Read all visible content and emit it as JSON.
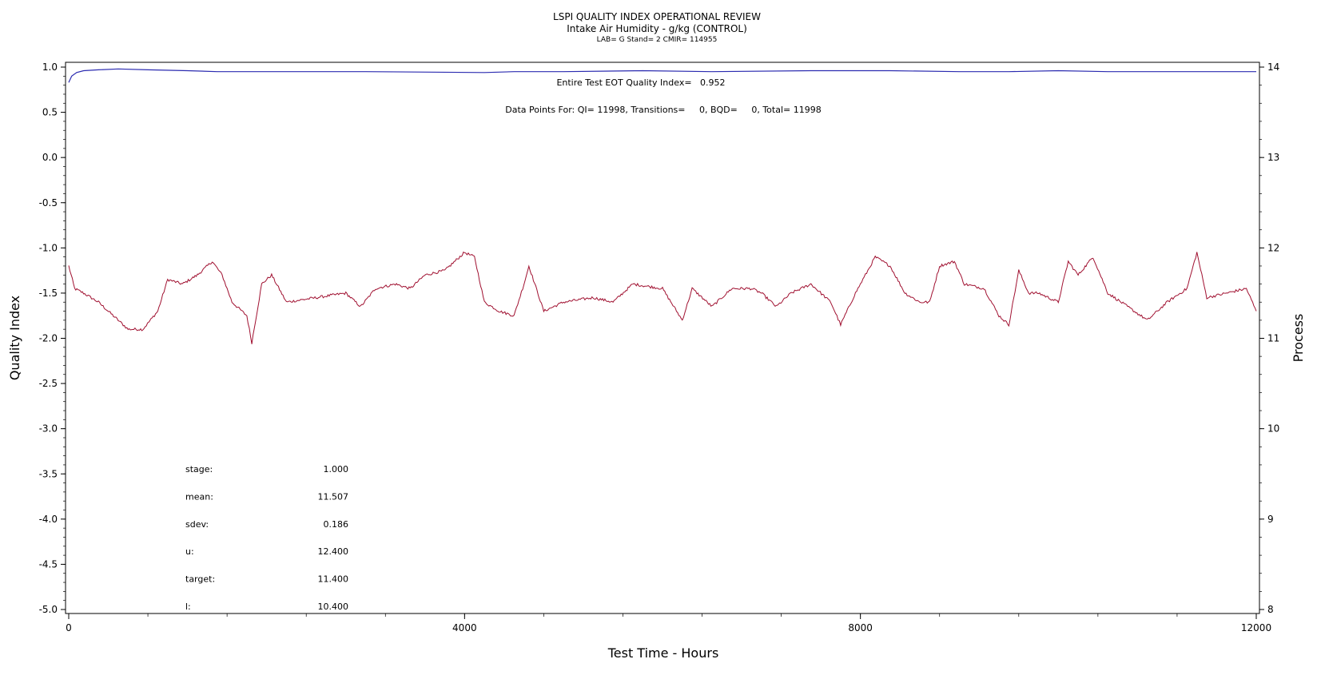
{
  "chart_data": {
    "type": "line",
    "title": "LSPI QUALITY INDEX OPERATIONAL REVIEW",
    "subtitle": "Intake Air Humidity - g/kg (CONTROL)",
    "subtitle2": "LAB= G Stand= 2 CMIR= 114955",
    "xlabel": "Test Time - Hours",
    "ylabel_left": "Quality Index",
    "ylabel_right": "Process",
    "xlim": [
      0,
      12000
    ],
    "ylim_left": [
      -5.0,
      1.0
    ],
    "ylim_right": [
      8,
      14
    ],
    "x_ticks": [
      "0",
      "4000",
      "8000",
      "12000"
    ],
    "y_left_ticks": [
      "1.0",
      "0.5",
      "0.0",
      "-0.5",
      "-1.0",
      "-1.5",
      "-2.0",
      "-2.5",
      "-3.0",
      "-3.5",
      "-4.0",
      "-4.5",
      "-5.0"
    ],
    "y_right_ticks": [
      "14",
      "13",
      "12",
      "11",
      "10",
      "9",
      "8"
    ],
    "grid": false,
    "header_annotation": "Entire Test EOT Quality Index=   0.952",
    "points_annotation": "Data Points For: QI= 11998, Transitions=     0, BQD=     0, Total= 11998",
    "stats": [
      {
        "label": "stage:",
        "value": "1.000"
      },
      {
        "label": "mean:",
        "value": "11.507"
      },
      {
        "label": "sdev:",
        "value": "0.186"
      },
      {
        "label": "u:",
        "value": "12.400"
      },
      {
        "label": "target:",
        "value": "11.400"
      },
      {
        "label": "l:",
        "value": "10.400"
      }
    ],
    "series": [
      {
        "axis": "left",
        "color": "#2b2bb0",
        "x": [
          0,
          30,
          80,
          150,
          300,
          500,
          800,
          1200,
          1500,
          2000,
          3000,
          4200,
          4500,
          5000,
          5800,
          6500,
          7500,
          8300,
          9000,
          9500,
          10000,
          10500,
          11000,
          12000
        ],
        "values": [
          0.83,
          0.9,
          0.94,
          0.96,
          0.97,
          0.98,
          0.97,
          0.96,
          0.95,
          0.95,
          0.95,
          0.94,
          0.95,
          0.95,
          0.96,
          0.95,
          0.96,
          0.96,
          0.95,
          0.95,
          0.96,
          0.95,
          0.95,
          0.95
        ]
      },
      {
        "axis": "right",
        "color": "#a01030",
        "x": [
          0,
          60,
          150,
          300,
          500,
          600,
          750,
          900,
          1000,
          1150,
          1300,
          1450,
          1550,
          1650,
          1800,
          1850,
          1950,
          2050,
          2200,
          2500,
          2800,
          2950,
          3100,
          3300,
          3450,
          3600,
          3800,
          4000,
          4100,
          4200,
          4350,
          4500,
          4600,
          4650,
          4800,
          5000,
          5300,
          5500,
          5700,
          6000,
          6200,
          6300,
          6500,
          6700,
          6900,
          7000,
          7150,
          7300,
          7500,
          7700,
          7800,
          7950,
          8050,
          8150,
          8300,
          8450,
          8600,
          8700,
          8800,
          8950,
          9050,
          9250,
          9400,
          9500,
          9600,
          9700,
          9800,
          10000,
          10100,
          10200,
          10350,
          10500,
          10700,
          10900,
          11100,
          11300,
          11400,
          11500,
          11700,
          11900,
          12000
        ],
        "values": [
          11.8,
          11.55,
          11.5,
          11.4,
          11.2,
          11.1,
          11.1,
          11.3,
          11.65,
          11.6,
          11.7,
          11.85,
          11.7,
          11.4,
          11.25,
          10.95,
          11.6,
          11.7,
          11.4,
          11.45,
          11.5,
          11.35,
          11.55,
          11.6,
          11.55,
          11.7,
          11.75,
          11.95,
          11.9,
          11.4,
          11.3,
          11.25,
          11.6,
          11.8,
          11.3,
          11.4,
          11.45,
          11.4,
          11.6,
          11.55,
          11.2,
          11.55,
          11.35,
          11.55,
          11.55,
          11.5,
          11.35,
          11.5,
          11.6,
          11.4,
          11.15,
          11.5,
          11.7,
          11.9,
          11.8,
          11.5,
          11.4,
          11.4,
          11.8,
          11.85,
          11.6,
          11.55,
          11.25,
          11.15,
          11.75,
          11.5,
          11.5,
          11.4,
          11.85,
          11.7,
          11.9,
          11.5,
          11.35,
          11.2,
          11.4,
          11.55,
          11.95,
          11.45,
          11.5,
          11.55,
          11.3
        ]
      }
    ]
  }
}
